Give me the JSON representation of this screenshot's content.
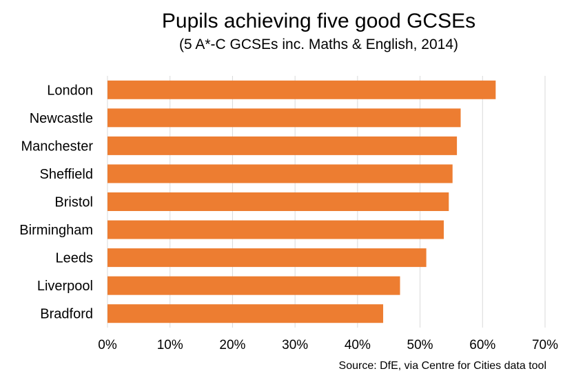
{
  "chart_data": {
    "type": "bar",
    "orientation": "horizontal",
    "title": "Pupils achieving five good GCSEs",
    "subtitle": "(5 A*-C GCSEs inc. Maths & English, 2014)",
    "categories": [
      "London",
      "Newcastle",
      "Manchester",
      "Sheffield",
      "Bristol",
      "Birmingham",
      "Leeds",
      "Liverpool",
      "Bradford"
    ],
    "values": [
      62.1,
      56.5,
      55.9,
      55.2,
      54.6,
      53.8,
      51.0,
      46.8,
      44.1
    ],
    "unit": "%",
    "xlim": [
      0,
      70
    ],
    "x_ticks": [
      "0%",
      "10%",
      "20%",
      "30%",
      "40%",
      "50%",
      "60%",
      "70%"
    ],
    "grid": "vertical",
    "bar_color": "#ED7D31",
    "grid_color": "#D9D9D9",
    "source": "Source: DfE, via Centre for Cities data tool"
  }
}
